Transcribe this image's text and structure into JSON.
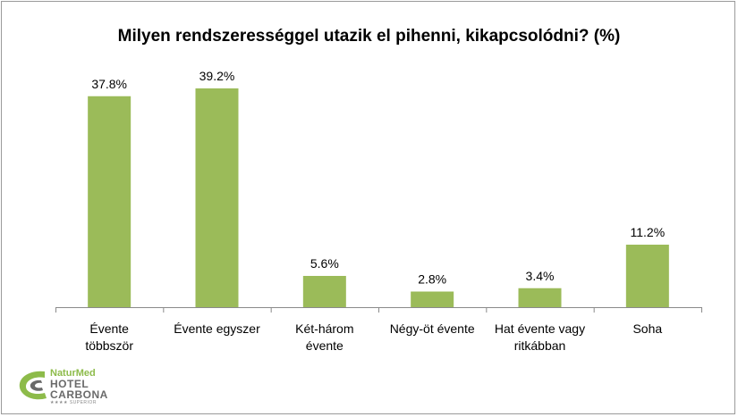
{
  "chart_data": {
    "type": "bar",
    "title": "Milyen rendszerességgel utazik el pihenni, kikapcsolódni? (%)",
    "categories": [
      [
        "Évente",
        "többször"
      ],
      [
        "Évente egyszer"
      ],
      [
        "Két-három",
        "évente"
      ],
      [
        "Négy-öt évente"
      ],
      [
        "Hat évente vagy",
        "ritkábban"
      ],
      [
        "Soha"
      ]
    ],
    "values": [
      37.8,
      39.2,
      5.6,
      2.8,
      3.4,
      11.2
    ],
    "data_labels": [
      "37.8%",
      "39.2%",
      "5.6%",
      "2.8%",
      "3.4%",
      "11.2%"
    ],
    "ylim": [
      0,
      40
    ],
    "bar_color": "#9bbb59",
    "grid": false,
    "legend": "none"
  },
  "logo": {
    "line1": "NaturMed",
    "line2": "HOTEL",
    "line3": "CARBONA",
    "line4": "★★★★ SUPERIOR",
    "color_green": "#8dbb4a",
    "color_gray": "#6a6a6a"
  }
}
